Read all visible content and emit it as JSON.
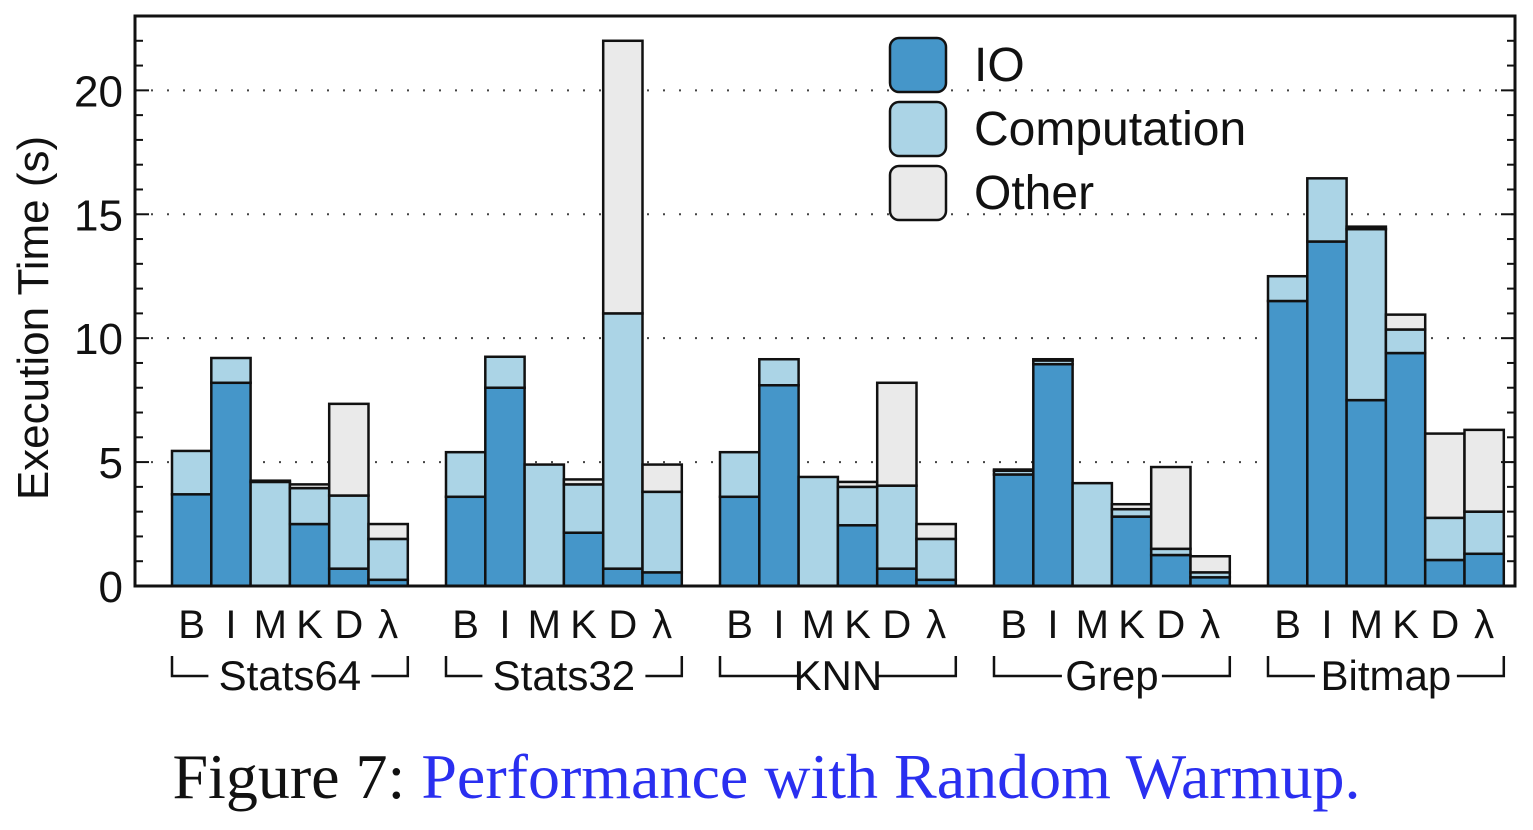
{
  "chart_data": {
    "type": "bar",
    "stacked": true,
    "ylabel": "Execution Time (s)",
    "ylim": [
      0,
      23
    ],
    "yticks": [
      0,
      5,
      10,
      15,
      20
    ],
    "grid": "horizontal dotted at major ticks",
    "legend_position": "top-right",
    "groups": [
      "Stats64",
      "Stats32",
      "KNN",
      "Grep",
      "Bitmap"
    ],
    "bar_labels": [
      "B",
      "I",
      "M",
      "K",
      "D",
      "λ"
    ],
    "series": [
      {
        "name": "IO",
        "color": "#4596c9",
        "values": [
          [
            3.7,
            8.2,
            0.0,
            2.5,
            0.7,
            0.25
          ],
          [
            3.6,
            8.0,
            0.0,
            2.15,
            0.7,
            0.55
          ],
          [
            3.6,
            8.1,
            0.0,
            2.45,
            0.7,
            0.25
          ],
          [
            4.5,
            8.95,
            0.0,
            2.8,
            1.25,
            0.35
          ],
          [
            11.5,
            13.9,
            7.5,
            9.4,
            1.05,
            1.3
          ]
        ]
      },
      {
        "name": "Computation",
        "color": "#abd4e6",
        "values": [
          [
            1.75,
            1.0,
            4.2,
            1.45,
            2.95,
            1.65
          ],
          [
            1.8,
            1.25,
            4.9,
            1.95,
            10.3,
            3.25
          ],
          [
            1.8,
            1.05,
            4.4,
            1.55,
            3.35,
            1.65
          ],
          [
            0.15,
            0.15,
            4.15,
            0.3,
            0.25,
            0.2
          ],
          [
            1.0,
            2.55,
            6.9,
            0.95,
            1.7,
            1.7
          ]
        ]
      },
      {
        "name": "Other",
        "color": "#eaeaea",
        "values": [
          [
            0.0,
            0.0,
            0.05,
            0.15,
            3.7,
            0.6
          ],
          [
            0.0,
            0.0,
            0.0,
            0.2,
            11.0,
            1.1
          ],
          [
            0.0,
            0.0,
            0.0,
            0.2,
            4.15,
            0.6
          ],
          [
            0.05,
            0.05,
            0.0,
            0.2,
            3.3,
            0.65
          ],
          [
            0.0,
            0.0,
            0.1,
            0.6,
            3.4,
            3.3
          ]
        ]
      }
    ]
  },
  "caption": {
    "prefix": "Figure 7: ",
    "title": "Performance with Random Warmup."
  }
}
